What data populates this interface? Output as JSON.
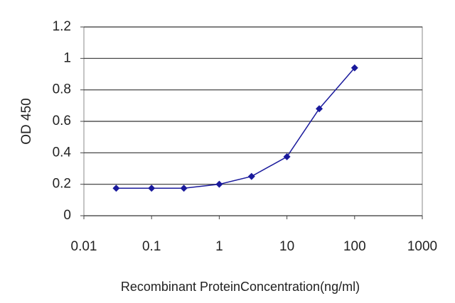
{
  "chart_data": {
    "type": "line",
    "x_label": "Recombinant ProteinConcentration(ng/ml)",
    "y_label": "OD 450",
    "x": [
      0.03,
      0.1,
      0.3,
      1,
      3,
      10,
      30,
      100
    ],
    "series": [
      {
        "name": "OD 450",
        "color": "#1a1a9c",
        "values": [
          0.175,
          0.175,
          0.175,
          0.2,
          0.25,
          0.375,
          0.68,
          0.94
        ]
      }
    ],
    "xscale": "log",
    "xlim": [
      0.01,
      1000
    ],
    "xticks": [
      0.01,
      0.1,
      1,
      10,
      100,
      1000
    ],
    "ylim": [
      0,
      1.2
    ],
    "yticks": [
      0,
      0.2,
      0.4,
      0.6,
      0.8,
      1,
      1.2
    ],
    "grid": true
  }
}
